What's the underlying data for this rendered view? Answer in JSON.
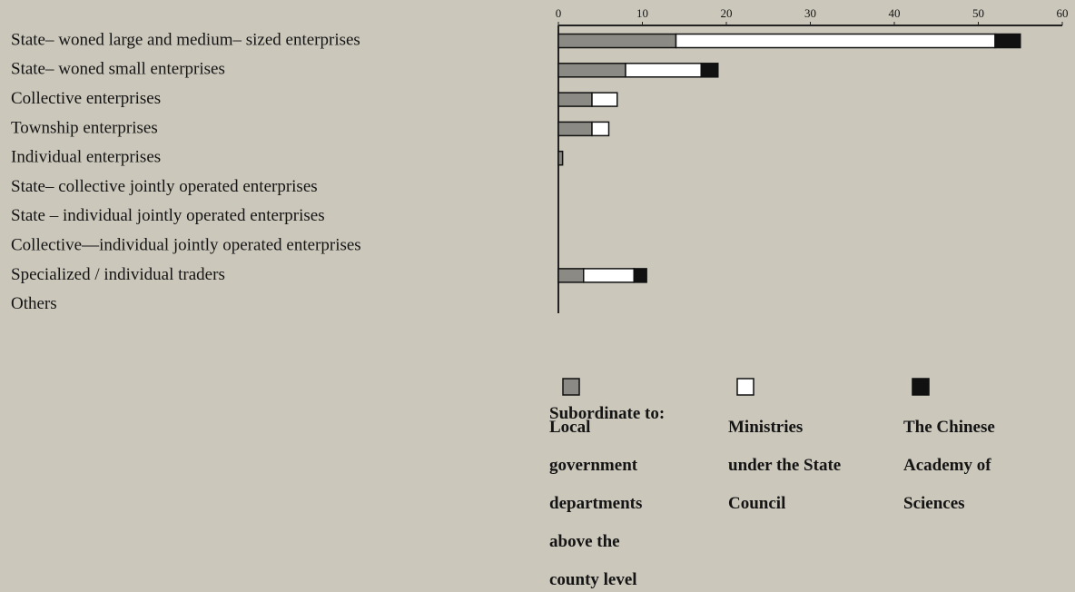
{
  "chart_data": {
    "type": "stacked-barh",
    "categories": [
      "State– woned large and medium– sized enterprises",
      "State– woned small enterprises",
      "Collective enterprises",
      "Township enterprises",
      "Individual enterprises",
      "State– collective jointly operated enterprises",
      "State – individual jointly operated enterprises",
      "Collective—individual jointly operated enterprises",
      "Specialized / individual traders",
      "Others"
    ],
    "series": [
      {
        "name": "Local government departments above the county level",
        "color": "#8c8a84",
        "values": [
          14,
          8,
          4,
          4,
          0.5,
          0,
          0,
          0,
          3,
          0
        ]
      },
      {
        "name": "Ministries under the State Council",
        "color": "#ffffff",
        "values": [
          38,
          9,
          3,
          2,
          0,
          0,
          0,
          0,
          6,
          0
        ]
      },
      {
        "name": "The Chinese Academy of Sciences",
        "color": "#111111",
        "values": [
          3,
          2,
          0,
          0,
          0,
          0,
          0,
          0,
          1.5,
          0
        ]
      }
    ],
    "legend_title": "Subordinate to:",
    "xlim": [
      0,
      60
    ],
    "xticks": [
      0,
      10,
      20,
      30,
      40,
      50,
      60
    ]
  }
}
